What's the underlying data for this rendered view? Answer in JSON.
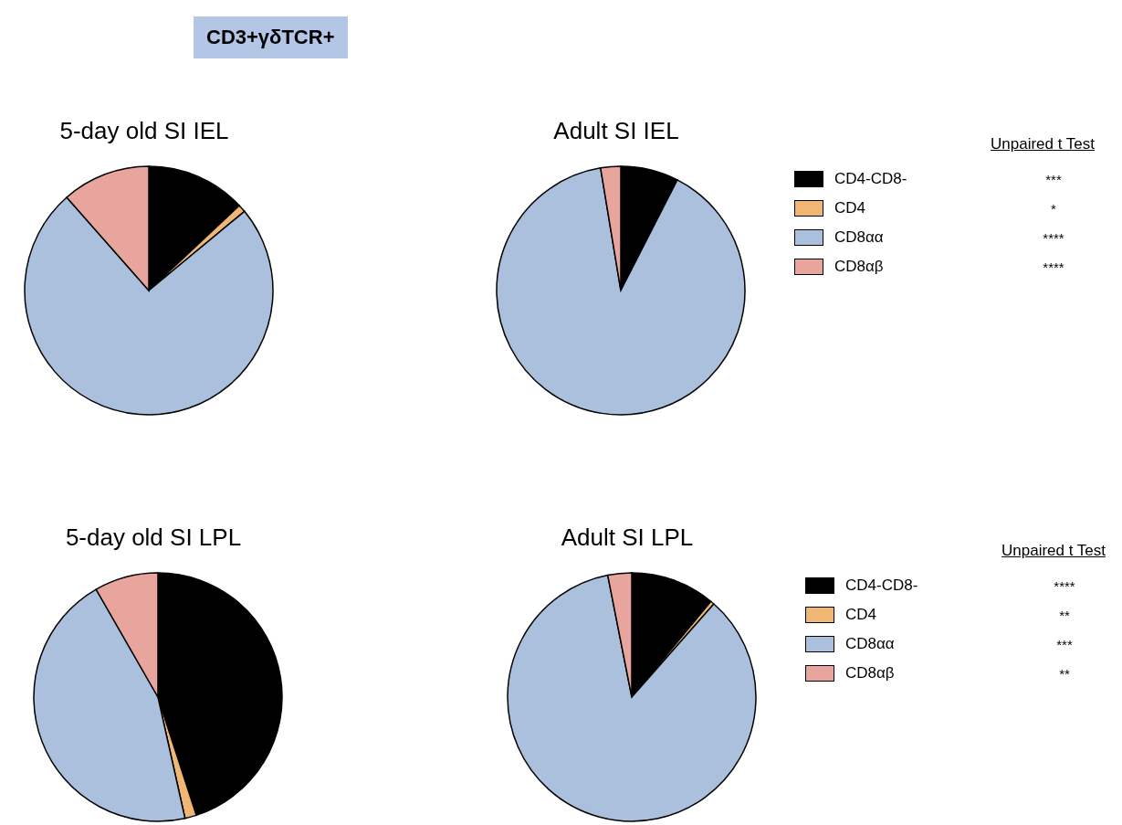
{
  "chart_data": [
    {
      "type": "pie",
      "title": "CD3+γδTCR+",
      "legend": "right",
      "annotations": [
        "Unpaired t Test",
        "***",
        "*",
        "****",
        "****"
      ],
      "categories": [
        "CD4-CD8-",
        "CD4",
        "CD8αα",
        "CD8αβ"
      ],
      "colors": [
        "#000000",
        "#f0b673",
        "#aac0dc",
        "#e8a59e"
      ],
      "series": [
        {
          "name": "5-day old SI IEL",
          "values": [
            13,
            1,
            74.5,
            11.5
          ]
        },
        {
          "name": "Adult SI IEL",
          "values": [
            7.5,
            null,
            89.6,
            2.6
          ]
        }
      ]
    },
    {
      "type": "pie",
      "legend": "right",
      "annotations": [
        "Unpaired t Test",
        "****",
        "**",
        "***",
        "**"
      ],
      "categories": [
        "CD4-CD8-",
        "CD4",
        "CD8αα",
        "CD8αβ"
      ],
      "colors": [
        "#000000",
        "#f0b673",
        "#aac0dc",
        "#e8a59e"
      ],
      "series": [
        {
          "name": "5-day old SI LPL",
          "values": [
            45,
            1.5,
            45.2,
            8.3
          ]
        },
        {
          "name": "Adult SI LPL",
          "values": [
            11,
            0.5,
            85.4,
            3.1
          ]
        }
      ]
    }
  ]
}
